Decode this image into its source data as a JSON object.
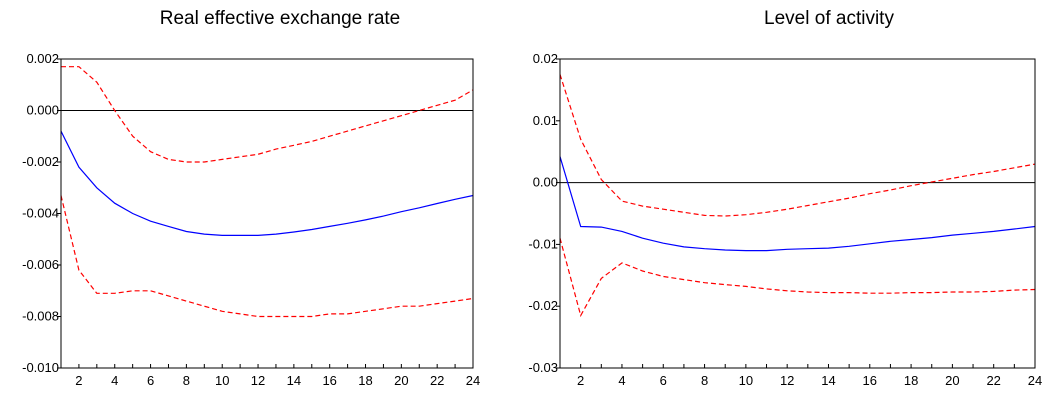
{
  "chart_data": [
    {
      "type": "line",
      "title": "Real effective exchange rate",
      "xlabel": "",
      "ylabel": "",
      "x": [
        1,
        2,
        3,
        4,
        5,
        6,
        7,
        8,
        9,
        10,
        11,
        12,
        13,
        14,
        15,
        16,
        17,
        18,
        19,
        20,
        21,
        22,
        23,
        24
      ],
      "xlim": [
        1,
        24
      ],
      "xticks": [
        "2",
        "4",
        "6",
        "8",
        "10",
        "12",
        "14",
        "16",
        "18",
        "20",
        "22",
        "24"
      ],
      "ylim": [
        -0.01,
        0.002
      ],
      "yticks": [
        "0.002",
        "0.000",
        "-0.002",
        "-0.004",
        "-0.006",
        "-0.008",
        "-0.010"
      ],
      "zero_line": 0,
      "grid": false,
      "series": [
        {
          "style": "solid",
          "color": "#0000ff",
          "values": [
            -0.0008,
            -0.0022,
            -0.003,
            -0.0036,
            -0.004,
            -0.0043,
            -0.0045,
            -0.0047,
            -0.0048,
            -0.00485,
            -0.00485,
            -0.00485,
            -0.0048,
            -0.00472,
            -0.00462,
            -0.0045,
            -0.00438,
            -0.00425,
            -0.0041,
            -0.00393,
            -0.00378,
            -0.00361,
            -0.00345,
            -0.0033
          ]
        },
        {
          "style": "dashed",
          "color": "#ff0000",
          "values": [
            0.0017,
            0.0017,
            0.0011,
            0.0,
            -0.001,
            -0.0016,
            -0.0019,
            -0.002,
            -0.002,
            -0.0019,
            -0.0018,
            -0.0017,
            -0.0015,
            -0.00135,
            -0.0012,
            -0.001,
            -0.0008,
            -0.0006,
            -0.0004,
            -0.0002,
            0.0,
            0.0002,
            0.0004,
            0.0008
          ]
        },
        {
          "style": "dashed",
          "color": "#ff0000",
          "values": [
            -0.0033,
            -0.0062,
            -0.0071,
            -0.0071,
            -0.007,
            -0.007,
            -0.0072,
            -0.0074,
            -0.0076,
            -0.0078,
            -0.0079,
            -0.008,
            -0.008,
            -0.008,
            -0.008,
            -0.0079,
            -0.0079,
            -0.0078,
            -0.0077,
            -0.0076,
            -0.0076,
            -0.0075,
            -0.0074,
            -0.0073
          ]
        }
      ]
    },
    {
      "type": "line",
      "title": "Level of activity",
      "xlabel": "",
      "ylabel": "",
      "x": [
        1,
        2,
        3,
        4,
        5,
        6,
        7,
        8,
        9,
        10,
        11,
        12,
        13,
        14,
        15,
        16,
        17,
        18,
        19,
        20,
        21,
        22,
        23,
        24
      ],
      "xlim": [
        1,
        24
      ],
      "xticks": [
        "2",
        "4",
        "6",
        "8",
        "10",
        "12",
        "14",
        "16",
        "18",
        "20",
        "22",
        "24"
      ],
      "ylim": [
        -0.03,
        0.02
      ],
      "yticks": [
        "0.02",
        "0.01",
        "0.00",
        "-0.01",
        "-0.02",
        "-0.03"
      ],
      "zero_line": 0,
      "grid": false,
      "series": [
        {
          "style": "solid",
          "color": "#0000ff",
          "values": [
            0.0042,
            -0.0071,
            -0.0072,
            -0.0079,
            -0.009,
            -0.0098,
            -0.0104,
            -0.0107,
            -0.0109,
            -0.011,
            -0.011,
            -0.0108,
            -0.0107,
            -0.0106,
            -0.0103,
            -0.0099,
            -0.0095,
            -0.0092,
            -0.0089,
            -0.0085,
            -0.0082,
            -0.0079,
            -0.0075,
            -0.0071
          ]
        },
        {
          "style": "dashed",
          "color": "#ff0000",
          "values": [
            0.0175,
            0.007,
            0.0005,
            -0.003,
            -0.0038,
            -0.0043,
            -0.0048,
            -0.0053,
            -0.0054,
            -0.0052,
            -0.0048,
            -0.0043,
            -0.0037,
            -0.0031,
            -0.0025,
            -0.0018,
            -0.0012,
            -0.0005,
            0.0001,
            0.0007,
            0.0013,
            0.0018,
            0.0024,
            0.003
          ]
        },
        {
          "style": "dashed",
          "color": "#ff0000",
          "values": [
            -0.009,
            -0.0215,
            -0.0155,
            -0.013,
            -0.0143,
            -0.0152,
            -0.0157,
            -0.0162,
            -0.0165,
            -0.0168,
            -0.0172,
            -0.0175,
            -0.0177,
            -0.0178,
            -0.0178,
            -0.0179,
            -0.0179,
            -0.0178,
            -0.0178,
            -0.0177,
            -0.0177,
            -0.0176,
            -0.0174,
            -0.0173
          ]
        }
      ]
    }
  ]
}
